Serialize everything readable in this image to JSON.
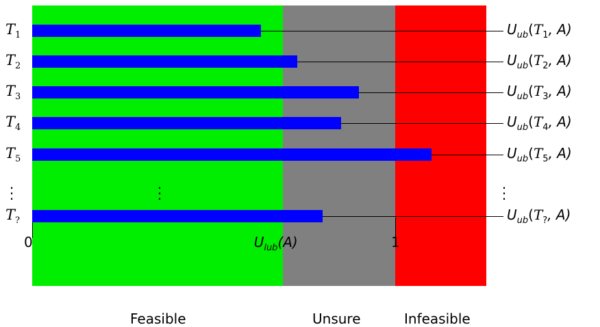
{
  "colors": {
    "feasible": "#00ee00",
    "unsure": "#808080",
    "infeasible": "#ff0000",
    "bar": "#0000ff"
  },
  "zones": {
    "feasible": "Feasible",
    "unsure": "Unsure",
    "infeasible": "Infeasible"
  },
  "axis": {
    "zero": "0",
    "lub": "U",
    "lub_sub": "lub",
    "lub_arg": "(A)",
    "one": "1"
  },
  "chart_data": {
    "type": "bar",
    "orientation": "horizontal",
    "xlim": [
      0,
      1.4
    ],
    "utilization_lub": 0.69,
    "categories": [
      "T1",
      "T2",
      "T3",
      "T4",
      "T5",
      "T?"
    ],
    "values": [
      0.63,
      0.73,
      0.9,
      0.85,
      1.1,
      0.8
    ],
    "ellipsis_between": [
      "T5",
      "T?"
    ]
  },
  "tasks": [
    {
      "sym": "T",
      "sub": "1",
      "bound": "U",
      "bound_sub": "ub",
      "bound_arg_open": "(",
      "bound_arg_sym": "T",
      "bound_arg_sub": "1",
      "bound_arg_close": ", A)"
    },
    {
      "sym": "T",
      "sub": "2",
      "bound": "U",
      "bound_sub": "ub",
      "bound_arg_open": "(",
      "bound_arg_sym": "T",
      "bound_arg_sub": "2",
      "bound_arg_close": ", A)"
    },
    {
      "sym": "T",
      "sub": "3",
      "bound": "U",
      "bound_sub": "ub",
      "bound_arg_open": "(",
      "bound_arg_sym": "T",
      "bound_arg_sub": "3",
      "bound_arg_close": ", A)"
    },
    {
      "sym": "T",
      "sub": "4",
      "bound": "U",
      "bound_sub": "ub",
      "bound_arg_open": "(",
      "bound_arg_sym": "T",
      "bound_arg_sub": "4",
      "bound_arg_close": ", A)"
    },
    {
      "sym": "T",
      "sub": "5",
      "bound": "U",
      "bound_sub": "ub",
      "bound_arg_open": "(",
      "bound_arg_sym": "T",
      "bound_arg_sub": "5",
      "bound_arg_close": ", A)"
    },
    {
      "sym": "T",
      "sub": "?",
      "bound": "U",
      "bound_sub": "ub",
      "bound_arg_open": "(",
      "bound_arg_sym": "T",
      "bound_arg_sub": "?",
      "bound_arg_close": ", A)"
    }
  ],
  "ellipsis": "⋮"
}
